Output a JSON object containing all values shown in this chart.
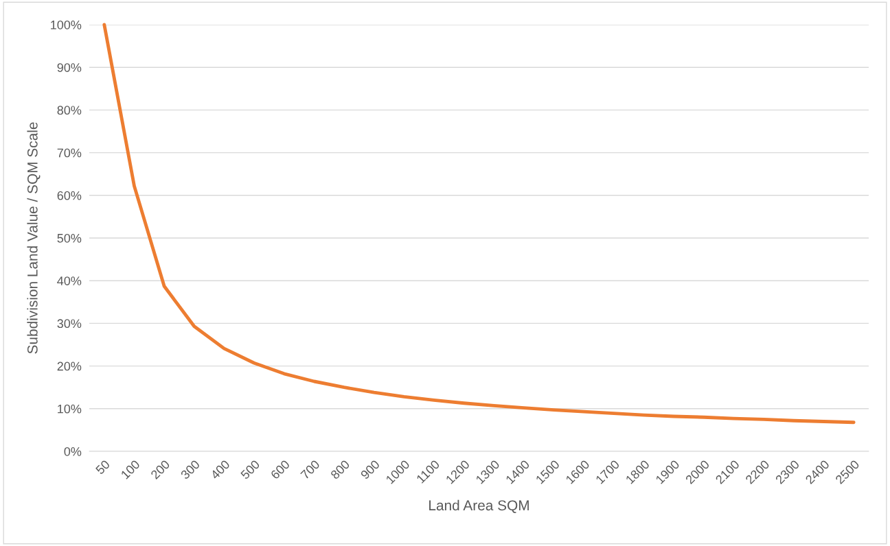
{
  "chart_data": {
    "type": "line",
    "xlabel": "Land Area SQM",
    "ylabel": "Subdivision Land Value / SQM Scale",
    "categories": [
      "50",
      "100",
      "200",
      "300",
      "400",
      "500",
      "600",
      "700",
      "800",
      "900",
      "1000",
      "1100",
      "1200",
      "1300",
      "1400",
      "1500",
      "1600",
      "1700",
      "1800",
      "1900",
      "2000",
      "2100",
      "2200",
      "2300",
      "2400",
      "2500"
    ],
    "series": [
      {
        "color": "#ed7d31",
        "values": [
          100,
          62.2,
          38.7,
          29.3,
          24.1,
          20.7,
          18.2,
          16.4,
          15.0,
          13.8,
          12.8,
          12.0,
          11.3,
          10.7,
          10.2,
          9.7,
          9.3,
          8.9,
          8.5,
          8.2,
          8.0,
          7.7,
          7.5,
          7.2,
          7.0,
          6.8
        ]
      }
    ],
    "ylim": [
      0,
      100
    ],
    "yticks": [
      {
        "value": 0,
        "label": "0%"
      },
      {
        "value": 10,
        "label": "10%"
      },
      {
        "value": 20,
        "label": "20%"
      },
      {
        "value": 30,
        "label": "30%"
      },
      {
        "value": 40,
        "label": "40%"
      },
      {
        "value": 50,
        "label": "50%"
      },
      {
        "value": 60,
        "label": "60%"
      },
      {
        "value": 70,
        "label": "70%"
      },
      {
        "value": 80,
        "label": "80%"
      },
      {
        "value": 90,
        "label": "90%"
      },
      {
        "value": 100,
        "label": "100%"
      }
    ],
    "grid": "y",
    "legend": false,
    "marker": "none",
    "line_style": "solid"
  }
}
